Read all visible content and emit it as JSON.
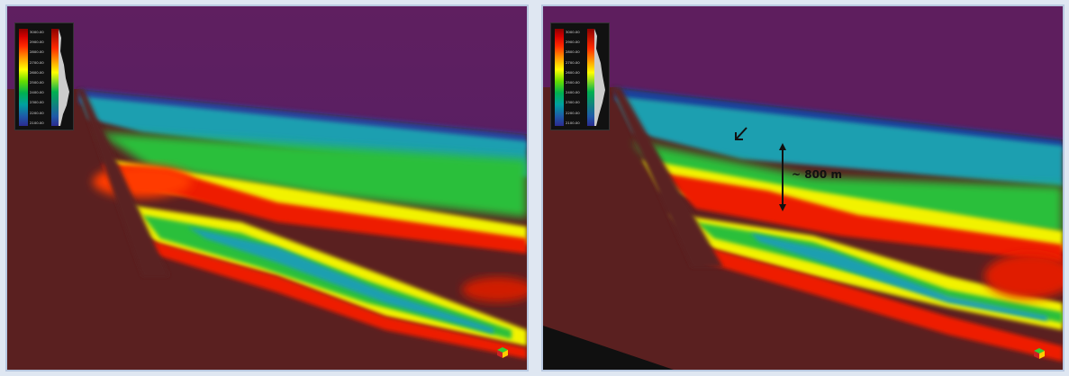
{
  "colors": {
    "background": "#dfe7f2",
    "panel_border": "#b8c8e0",
    "sky": "#5e1e5e",
    "basement": "#5a2020",
    "deep_blue": "#1f3f9a",
    "cyan": "#1aa0b0",
    "green": "#2bbf3a",
    "yellow": "#f4f400",
    "red": "#ee1a00"
  },
  "colorbar": {
    "ticks": [
      "3000.00",
      "2900.00",
      "2800.00",
      "2700.00",
      "2600.00",
      "2500.00",
      "2400.00",
      "2300.00",
      "2200.00",
      "2100.00"
    ]
  },
  "annotations": {
    "thickness_label": "~ 800 m"
  },
  "icons": {
    "cube": "3d-cube-icon",
    "arrow": "down-left-arrow-icon",
    "double_arrow": "vertical-double-arrow-icon"
  }
}
